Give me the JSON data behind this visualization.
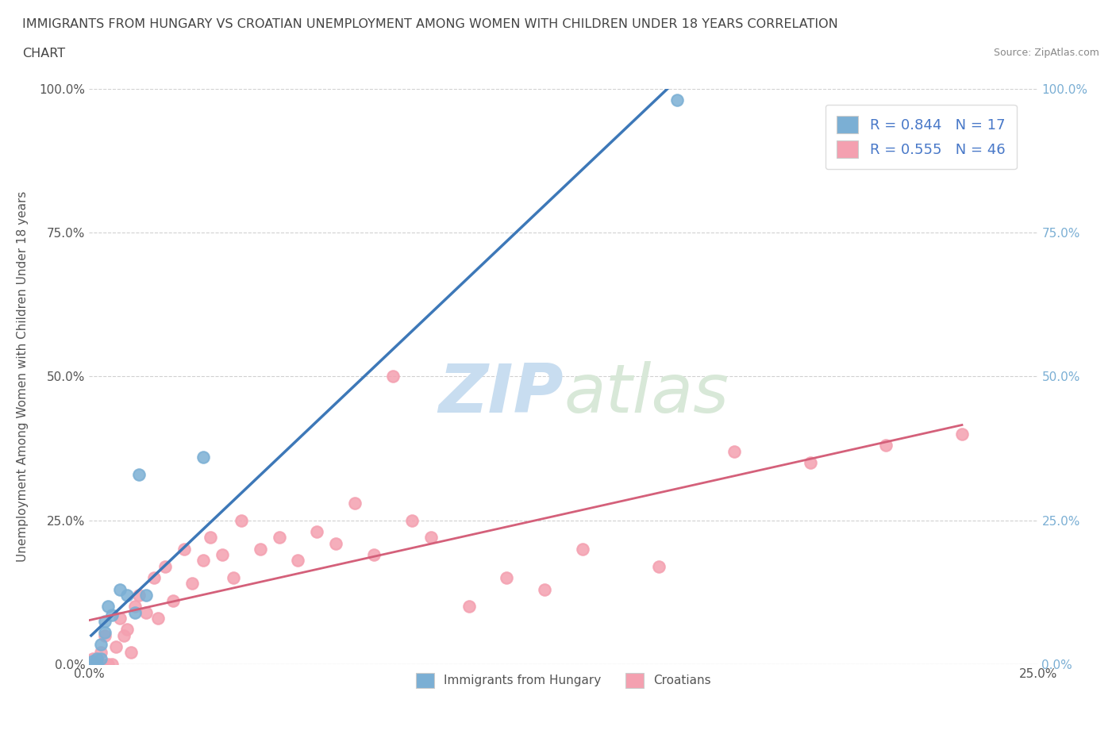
{
  "title_line1": "IMMIGRANTS FROM HUNGARY VS CROATIAN UNEMPLOYMENT AMONG WOMEN WITH CHILDREN UNDER 18 YEARS CORRELATION",
  "title_line2": "CHART",
  "source": "Source: ZipAtlas.com",
  "ylabel": "Unemployment Among Women with Children Under 18 years",
  "xlim": [
    0,
    0.25
  ],
  "ylim": [
    0,
    1.0
  ],
  "yticks": [
    0.0,
    0.25,
    0.5,
    0.75,
    1.0
  ],
  "xticks": [
    0.0,
    0.05,
    0.1,
    0.15,
    0.2,
    0.25
  ],
  "ytick_labels": [
    "0.0%",
    "25.0%",
    "50.0%",
    "75.0%",
    "100.0%"
  ],
  "xtick_labels": [
    "0.0%",
    "",
    "",
    "",
    "",
    "25.0%"
  ],
  "hungary_R": 0.844,
  "hungary_N": 17,
  "croatian_R": 0.555,
  "croatian_N": 46,
  "hungary_scatter_color": "#7bafd4",
  "croatian_scatter_color": "#f4a0b0",
  "hungary_line_color": "#3d78b8",
  "croatian_line_color": "#d4607a",
  "right_axis_color": "#7bafd4",
  "legend_label_hungary": "Immigrants from Hungary",
  "legend_label_croatian": "Croatians",
  "legend_text_color": "#4878c8",
  "watermark_zip": "ZIP",
  "watermark_atlas": "atlas",
  "hungary_x": [
    0.0005,
    0.001,
    0.002,
    0.002,
    0.003,
    0.003,
    0.004,
    0.004,
    0.005,
    0.006,
    0.008,
    0.01,
    0.012,
    0.013,
    0.015,
    0.03,
    0.155
  ],
  "hungary_y": [
    0.0,
    0.005,
    0.0,
    0.01,
    0.01,
    0.035,
    0.055,
    0.075,
    0.1,
    0.085,
    0.13,
    0.12,
    0.09,
    0.33,
    0.12,
    0.36,
    0.98
  ],
  "croatian_x": [
    0.001,
    0.001,
    0.002,
    0.003,
    0.003,
    0.004,
    0.005,
    0.006,
    0.007,
    0.008,
    0.009,
    0.01,
    0.011,
    0.012,
    0.013,
    0.015,
    0.017,
    0.018,
    0.02,
    0.022,
    0.025,
    0.027,
    0.03,
    0.032,
    0.035,
    0.038,
    0.04,
    0.045,
    0.05,
    0.055,
    0.06,
    0.065,
    0.07,
    0.075,
    0.08,
    0.085,
    0.09,
    0.1,
    0.11,
    0.12,
    0.13,
    0.15,
    0.17,
    0.19,
    0.21,
    0.23
  ],
  "croatian_y": [
    0.0,
    0.01,
    0.0,
    0.02,
    0.0,
    0.05,
    0.0,
    0.0,
    0.03,
    0.08,
    0.05,
    0.06,
    0.02,
    0.1,
    0.12,
    0.09,
    0.15,
    0.08,
    0.17,
    0.11,
    0.2,
    0.14,
    0.18,
    0.22,
    0.19,
    0.15,
    0.25,
    0.2,
    0.22,
    0.18,
    0.23,
    0.21,
    0.28,
    0.19,
    0.5,
    0.25,
    0.22,
    0.1,
    0.15,
    0.13,
    0.2,
    0.17,
    0.37,
    0.35,
    0.38,
    0.4
  ]
}
